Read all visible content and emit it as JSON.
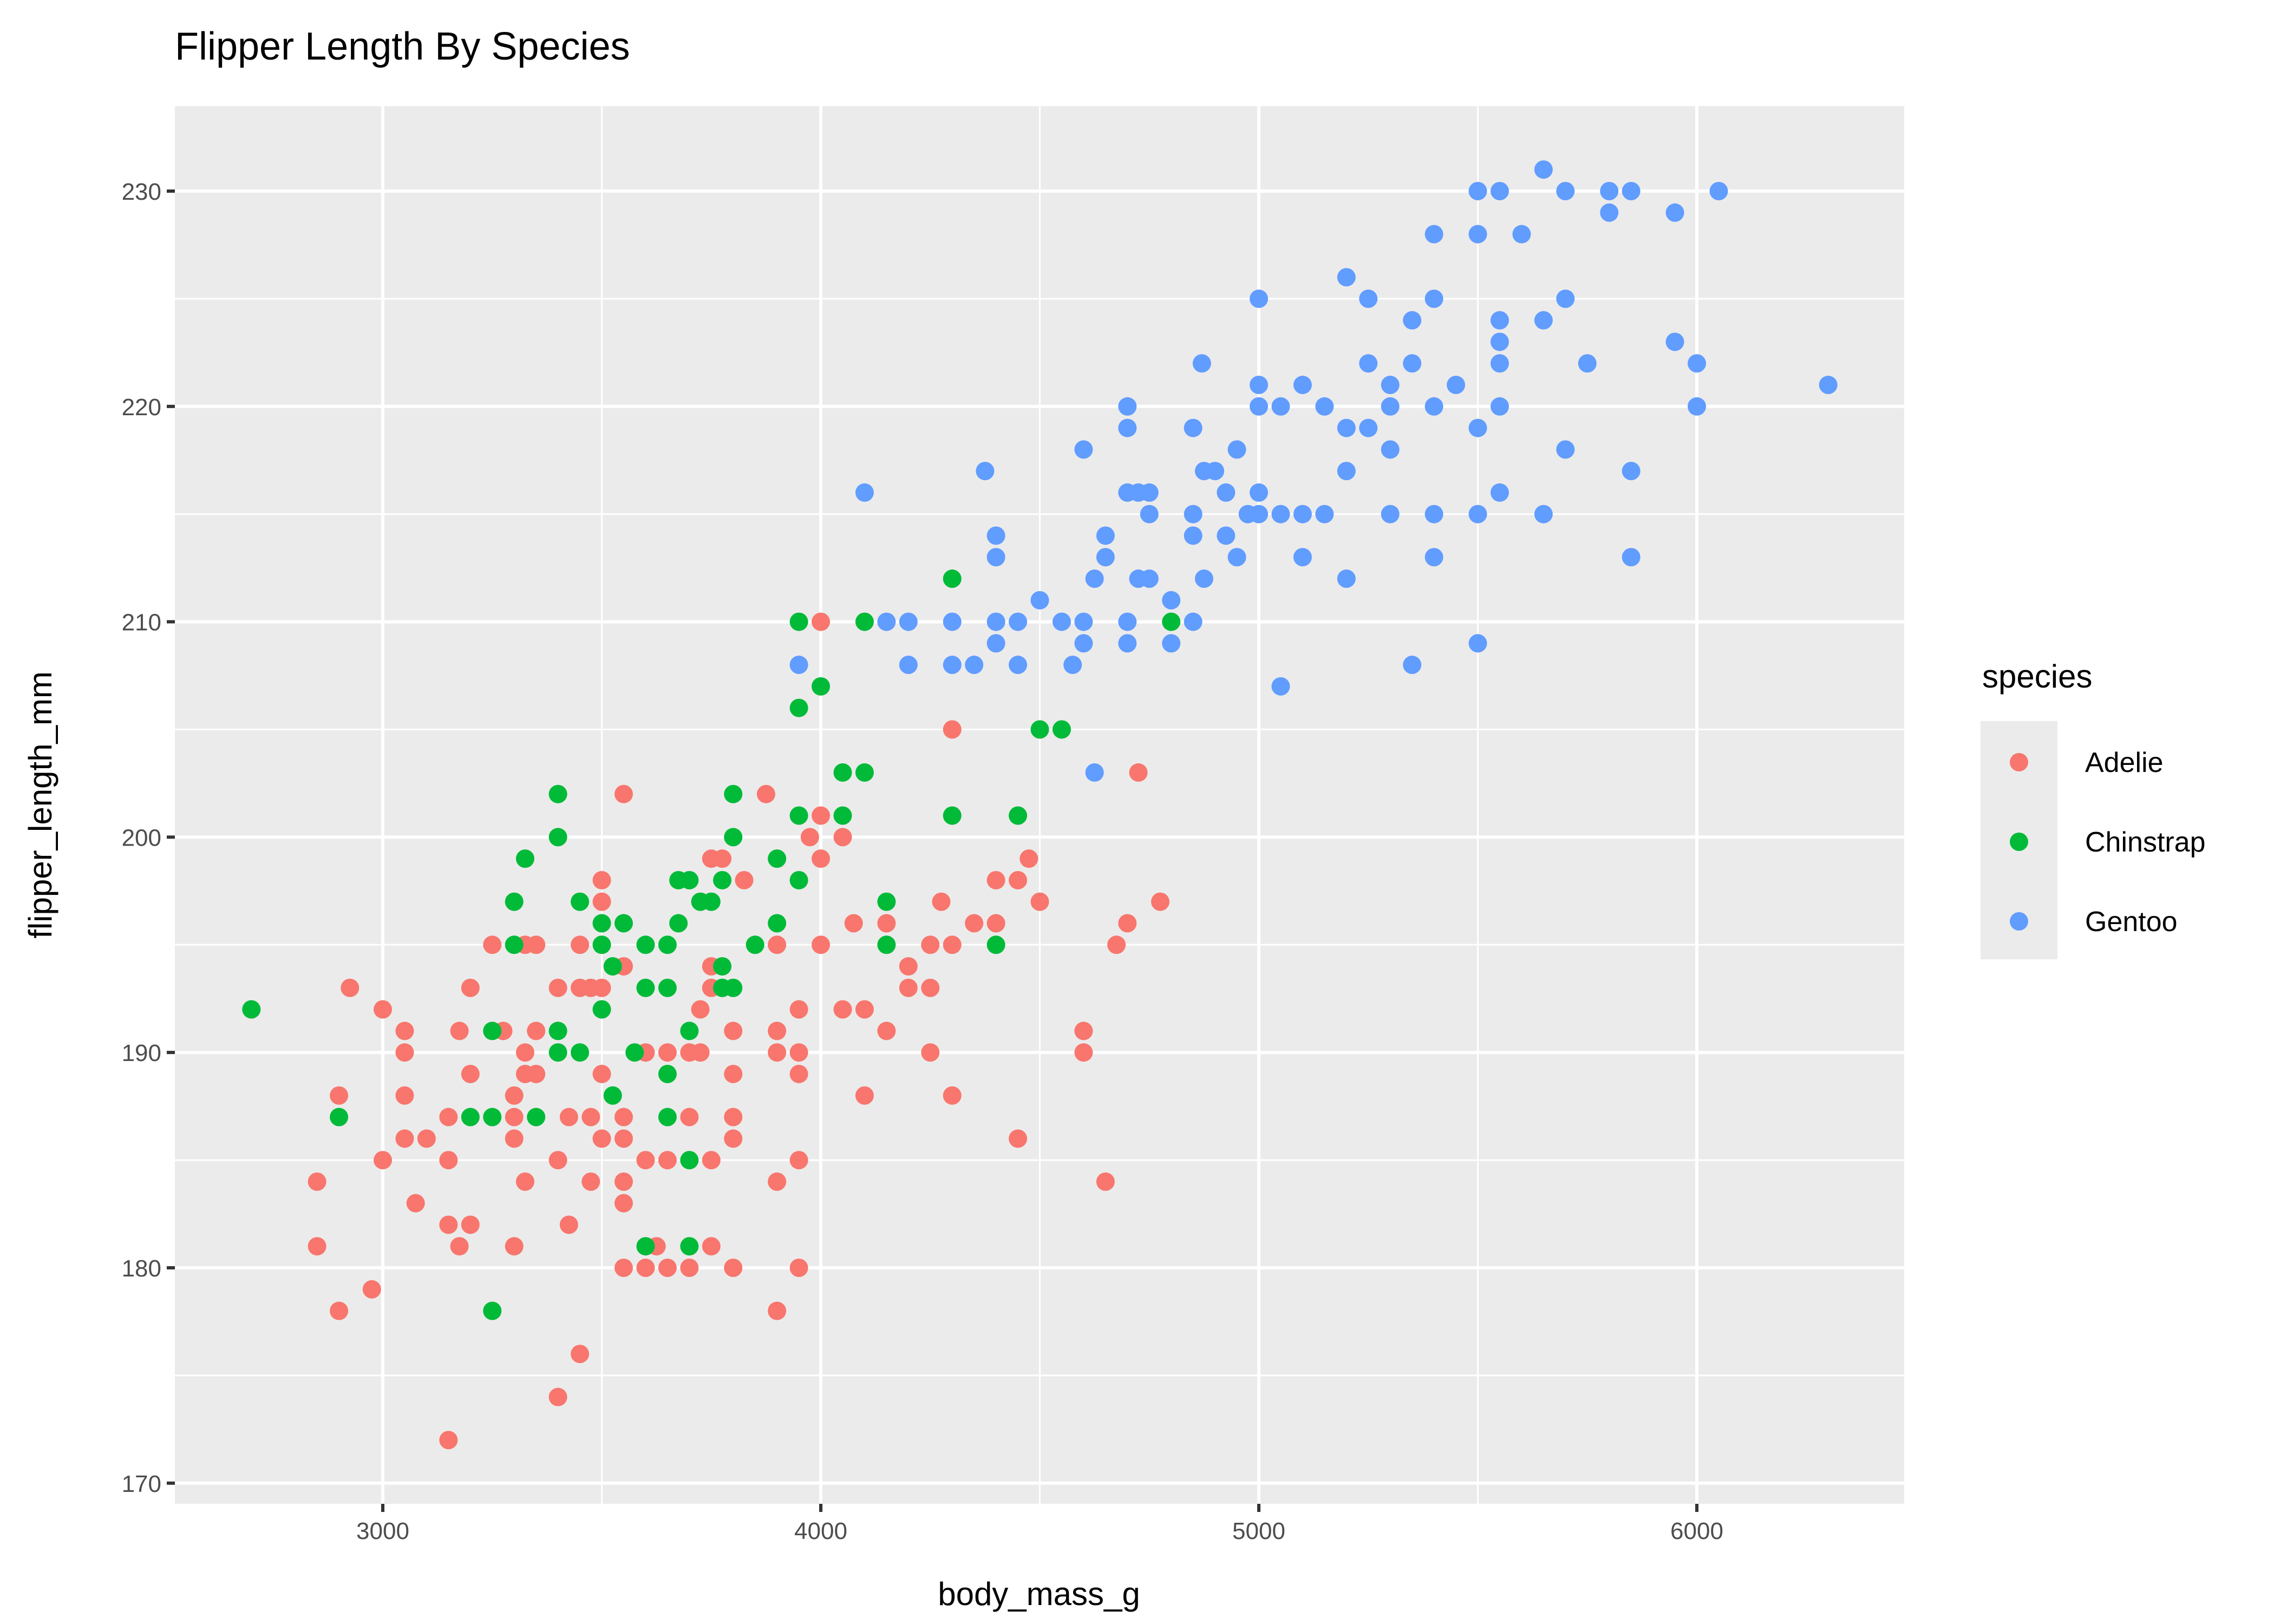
{
  "chart_data": {
    "type": "scatter",
    "title": "Flipper Length By Species",
    "xlabel": "body_mass_g",
    "ylabel": "flipper_length_mm",
    "xlim": [
      2550,
      6500
    ],
    "ylim": [
      168,
      234
    ],
    "xticks": [
      3000,
      4000,
      5000,
      6000
    ],
    "yticks": [
      170,
      180,
      190,
      200,
      210,
      220,
      230
    ],
    "grid": true,
    "legend": {
      "title": "species",
      "position": "right"
    },
    "series": [
      {
        "name": "Adelie",
        "color": "#F8766D",
        "points": [
          [
            2850,
            184
          ],
          [
            2850,
            181
          ],
          [
            2900,
            188
          ],
          [
            2900,
            178
          ],
          [
            2925,
            193
          ],
          [
            2975,
            179
          ],
          [
            3000,
            192
          ],
          [
            3000,
            185
          ],
          [
            3050,
            191
          ],
          [
            3050,
            190
          ],
          [
            3050,
            188
          ],
          [
            3050,
            186
          ],
          [
            3075,
            183
          ],
          [
            3100,
            186
          ],
          [
            3150,
            187
          ],
          [
            3150,
            185
          ],
          [
            3150,
            182
          ],
          [
            3150,
            172
          ],
          [
            3175,
            191
          ],
          [
            3175,
            181
          ],
          [
            3200,
            193
          ],
          [
            3200,
            189
          ],
          [
            3200,
            182
          ],
          [
            3250,
            195
          ],
          [
            3275,
            191
          ],
          [
            3300,
            188
          ],
          [
            3300,
            187
          ],
          [
            3300,
            186
          ],
          [
            3300,
            181
          ],
          [
            3325,
            195
          ],
          [
            3325,
            190
          ],
          [
            3325,
            189
          ],
          [
            3325,
            184
          ],
          [
            3350,
            195
          ],
          [
            3350,
            191
          ],
          [
            3350,
            189
          ],
          [
            3400,
            193
          ],
          [
            3400,
            185
          ],
          [
            3400,
            174
          ],
          [
            3425,
            187
          ],
          [
            3425,
            182
          ],
          [
            3450,
            195
          ],
          [
            3450,
            193
          ],
          [
            3450,
            176
          ],
          [
            3475,
            193
          ],
          [
            3475,
            187
          ],
          [
            3475,
            184
          ],
          [
            3500,
            198
          ],
          [
            3500,
            197
          ],
          [
            3500,
            193
          ],
          [
            3500,
            189
          ],
          [
            3500,
            186
          ],
          [
            3550,
            202
          ],
          [
            3550,
            194
          ],
          [
            3550,
            187
          ],
          [
            3550,
            186
          ],
          [
            3550,
            184
          ],
          [
            3550,
            183
          ],
          [
            3550,
            180
          ],
          [
            3600,
            190
          ],
          [
            3600,
            185
          ],
          [
            3600,
            180
          ],
          [
            3625,
            181
          ],
          [
            3650,
            190
          ],
          [
            3650,
            185
          ],
          [
            3650,
            180
          ],
          [
            3700,
            190
          ],
          [
            3700,
            187
          ],
          [
            3700,
            180
          ],
          [
            3725,
            192
          ],
          [
            3725,
            190
          ],
          [
            3750,
            199
          ],
          [
            3750,
            194
          ],
          [
            3750,
            193
          ],
          [
            3750,
            185
          ],
          [
            3750,
            181
          ],
          [
            3775,
            199
          ],
          [
            3800,
            191
          ],
          [
            3800,
            189
          ],
          [
            3800,
            187
          ],
          [
            3800,
            186
          ],
          [
            3800,
            180
          ],
          [
            3825,
            198
          ],
          [
            3875,
            202
          ],
          [
            3900,
            195
          ],
          [
            3900,
            191
          ],
          [
            3900,
            190
          ],
          [
            3900,
            184
          ],
          [
            3900,
            178
          ],
          [
            3950,
            192
          ],
          [
            3950,
            190
          ],
          [
            3950,
            189
          ],
          [
            3950,
            185
          ],
          [
            3950,
            180
          ],
          [
            3975,
            200
          ],
          [
            4000,
            210
          ],
          [
            4000,
            201
          ],
          [
            4000,
            199
          ],
          [
            4000,
            195
          ],
          [
            4050,
            200
          ],
          [
            4050,
            192
          ],
          [
            4075,
            196
          ],
          [
            4100,
            192
          ],
          [
            4100,
            188
          ],
          [
            4150,
            196
          ],
          [
            4150,
            191
          ],
          [
            4200,
            194
          ],
          [
            4200,
            193
          ],
          [
            4250,
            195
          ],
          [
            4250,
            193
          ],
          [
            4250,
            190
          ],
          [
            4275,
            197
          ],
          [
            4300,
            205
          ],
          [
            4300,
            195
          ],
          [
            4300,
            188
          ],
          [
            4350,
            196
          ],
          [
            4400,
            198
          ],
          [
            4400,
            196
          ],
          [
            4450,
            198
          ],
          [
            4450,
            186
          ],
          [
            4475,
            199
          ],
          [
            4500,
            197
          ],
          [
            4600,
            191
          ],
          [
            4600,
            190
          ],
          [
            4650,
            184
          ],
          [
            4675,
            195
          ],
          [
            4700,
            196
          ],
          [
            4725,
            203
          ],
          [
            4775,
            197
          ]
        ]
      },
      {
        "name": "Chinstrap",
        "color": "#00BA38",
        "points": [
          [
            2700,
            192
          ],
          [
            2900,
            187
          ],
          [
            3250,
            178
          ],
          [
            3250,
            187
          ],
          [
            3200,
            187
          ],
          [
            3250,
            191
          ],
          [
            3300,
            195
          ],
          [
            3300,
            197
          ],
          [
            3325,
            199
          ],
          [
            3400,
            202
          ],
          [
            3400,
            200
          ],
          [
            3350,
            187
          ],
          [
            3400,
            190
          ],
          [
            3400,
            191
          ],
          [
            3450,
            197
          ],
          [
            3450,
            190
          ],
          [
            3500,
            196
          ],
          [
            3500,
            195
          ],
          [
            3500,
            192
          ],
          [
            3525,
            194
          ],
          [
            3525,
            188
          ],
          [
            3550,
            196
          ],
          [
            3575,
            190
          ],
          [
            3600,
            195
          ],
          [
            3600,
            193
          ],
          [
            3600,
            181
          ],
          [
            3650,
            195
          ],
          [
            3650,
            193
          ],
          [
            3650,
            189
          ],
          [
            3650,
            187
          ],
          [
            3675,
            196
          ],
          [
            3675,
            198
          ],
          [
            3700,
            198
          ],
          [
            3700,
            191
          ],
          [
            3700,
            185
          ],
          [
            3700,
            181
          ],
          [
            3725,
            197
          ],
          [
            3750,
            197
          ],
          [
            3775,
            198
          ],
          [
            3775,
            194
          ],
          [
            3775,
            193
          ],
          [
            3800,
            193
          ],
          [
            3800,
            202
          ],
          [
            3800,
            200
          ],
          [
            3850,
            195
          ],
          [
            3900,
            199
          ],
          [
            3900,
            196
          ],
          [
            3950,
            210
          ],
          [
            3950,
            206
          ],
          [
            3950,
            201
          ],
          [
            3950,
            198
          ],
          [
            4000,
            207
          ],
          [
            4050,
            203
          ],
          [
            4050,
            201
          ],
          [
            4100,
            210
          ],
          [
            4100,
            203
          ],
          [
            4150,
            197
          ],
          [
            4150,
            195
          ],
          [
            4300,
            212
          ],
          [
            4300,
            201
          ],
          [
            4400,
            195
          ],
          [
            4450,
            201
          ],
          [
            4500,
            205
          ],
          [
            4550,
            205
          ],
          [
            4800,
            210
          ]
        ]
      },
      {
        "name": "Gentoo",
        "color": "#619CFF",
        "points": [
          [
            6050,
            230
          ],
          [
            5650,
            231
          ],
          [
            5500,
            230
          ],
          [
            5550,
            230
          ],
          [
            5700,
            230
          ],
          [
            5800,
            230
          ],
          [
            5850,
            230
          ],
          [
            5800,
            229
          ],
          [
            5950,
            229
          ],
          [
            5400,
            228
          ],
          [
            5500,
            228
          ],
          [
            5600,
            228
          ],
          [
            5200,
            226
          ],
          [
            5000,
            225
          ],
          [
            5250,
            225
          ],
          [
            5400,
            225
          ],
          [
            5700,
            225
          ],
          [
            5350,
            224
          ],
          [
            5550,
            224
          ],
          [
            5650,
            224
          ],
          [
            5550,
            223
          ],
          [
            5950,
            223
          ],
          [
            4870,
            222
          ],
          [
            5250,
            222
          ],
          [
            5350,
            222
          ],
          [
            5550,
            222
          ],
          [
            5750,
            222
          ],
          [
            6000,
            222
          ],
          [
            5000,
            221
          ],
          [
            5100,
            221
          ],
          [
            5300,
            221
          ],
          [
            5450,
            221
          ],
          [
            6300,
            221
          ],
          [
            4700,
            220
          ],
          [
            5000,
            220
          ],
          [
            5050,
            220
          ],
          [
            5150,
            220
          ],
          [
            5300,
            220
          ],
          [
            5400,
            220
          ],
          [
            5550,
            220
          ],
          [
            6000,
            220
          ],
          [
            4700,
            219
          ],
          [
            4850,
            219
          ],
          [
            5200,
            219
          ],
          [
            5250,
            219
          ],
          [
            5500,
            219
          ],
          [
            4600,
            218
          ],
          [
            4950,
            218
          ],
          [
            5300,
            218
          ],
          [
            5700,
            218
          ],
          [
            4375,
            217
          ],
          [
            4875,
            217
          ],
          [
            4900,
            217
          ],
          [
            5200,
            217
          ],
          [
            5850,
            217
          ],
          [
            4100,
            216
          ],
          [
            4700,
            216
          ],
          [
            4725,
            216
          ],
          [
            4750,
            216
          ],
          [
            4925,
            216
          ],
          [
            5000,
            216
          ],
          [
            5550,
            216
          ],
          [
            4750,
            215
          ],
          [
            4850,
            215
          ],
          [
            4975,
            215
          ],
          [
            5000,
            215
          ],
          [
            5050,
            215
          ],
          [
            5100,
            215
          ],
          [
            5150,
            215
          ],
          [
            5300,
            215
          ],
          [
            5400,
            215
          ],
          [
            5500,
            215
          ],
          [
            5650,
            215
          ],
          [
            4400,
            214
          ],
          [
            4650,
            214
          ],
          [
            4850,
            214
          ],
          [
            4925,
            214
          ],
          [
            4400,
            213
          ],
          [
            4650,
            213
          ],
          [
            4950,
            213
          ],
          [
            5100,
            213
          ],
          [
            5400,
            213
          ],
          [
            5850,
            213
          ],
          [
            4625,
            212
          ],
          [
            4725,
            212
          ],
          [
            4750,
            212
          ],
          [
            4875,
            212
          ],
          [
            5200,
            212
          ],
          [
            4500,
            211
          ],
          [
            4800,
            211
          ],
          [
            3950,
            208
          ],
          [
            4150,
            210
          ],
          [
            4200,
            210
          ],
          [
            4300,
            210
          ],
          [
            4400,
            210
          ],
          [
            4450,
            210
          ],
          [
            4550,
            210
          ],
          [
            4600,
            210
          ],
          [
            4700,
            210
          ],
          [
            4850,
            210
          ],
          [
            4400,
            209
          ],
          [
            4600,
            209
          ],
          [
            4700,
            209
          ],
          [
            4800,
            209
          ],
          [
            5500,
            209
          ],
          [
            4200,
            208
          ],
          [
            4300,
            208
          ],
          [
            4350,
            208
          ],
          [
            4450,
            208
          ],
          [
            4575,
            208
          ],
          [
            5350,
            208
          ],
          [
            5050,
            207
          ],
          [
            4625,
            203
          ]
        ]
      }
    ]
  }
}
